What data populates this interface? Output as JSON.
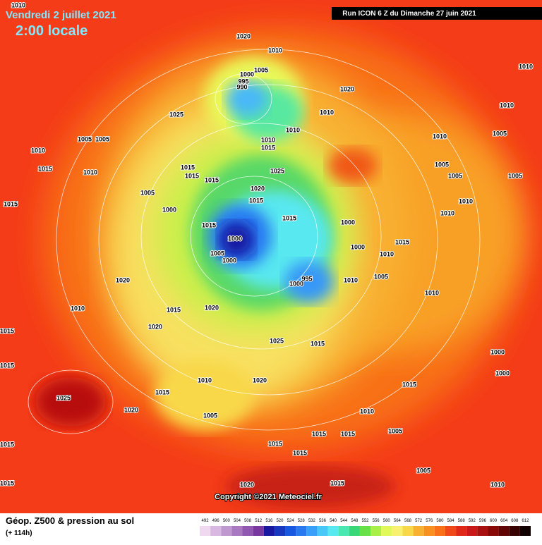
{
  "header": {
    "date": "Vendredi 2 juillet 2021",
    "time": "2:00 locale",
    "run": "Run ICON 6 Z du Dimanche 27 juin 2021"
  },
  "footer": {
    "title": "Géop. Z500 & pression au sol",
    "lead": "(+ 114h)",
    "copyright": "Copyright ©2021 Meteociel.fr"
  },
  "legend": {
    "values": [
      492,
      496,
      500,
      504,
      508,
      512,
      516,
      520,
      524,
      528,
      532,
      536,
      540,
      544,
      548,
      552,
      556,
      560,
      564,
      568,
      572,
      576,
      580,
      584,
      588,
      592,
      596,
      600,
      604,
      608,
      612
    ],
    "colors": [
      "#f0d8f0",
      "#d8b8e0",
      "#c098d0",
      "#a878c0",
      "#9058b0",
      "#7838a0",
      "#1818a0",
      "#1838c0",
      "#1858e0",
      "#2878f0",
      "#38a0f8",
      "#48c8f8",
      "#58e8f0",
      "#48e8b0",
      "#38d878",
      "#68e048",
      "#a8f048",
      "#e0f858",
      "#f8f070",
      "#f8d848",
      "#f8b030",
      "#f89020",
      "#f87018",
      "#f04818",
      "#e02818",
      "#c81818",
      "#a81010",
      "#880808",
      "#600404",
      "#380202",
      "#100000"
    ]
  },
  "pressure_labels": [
    1010,
    1020,
    1010,
    1005,
    1000,
    995,
    990,
    1025,
    1020,
    1010,
    1010,
    1010,
    1015,
    1010,
    1005,
    1005,
    1015,
    1010,
    1015,
    1015,
    1015,
    1025,
    1020,
    1015,
    1015,
    1005,
    1000,
    1015,
    1015,
    1000,
    1005,
    1000,
    1000,
    1000,
    995,
    1000,
    1010,
    1005,
    1010,
    1015,
    1010,
    1005,
    1005,
    1005,
    1010,
    1010,
    1010,
    1020,
    1015,
    1020,
    1010,
    1020,
    1015,
    1025,
    1015,
    1015,
    1010,
    1020,
    1015,
    1025,
    1020,
    1005,
    1010,
    1015,
    1000,
    1000,
    1015,
    1005,
    1015,
    1015,
    1015,
    1015,
    1005,
    1020,
    1015,
    1010,
    1015,
    1010,
    1010,
    1005
  ]
}
